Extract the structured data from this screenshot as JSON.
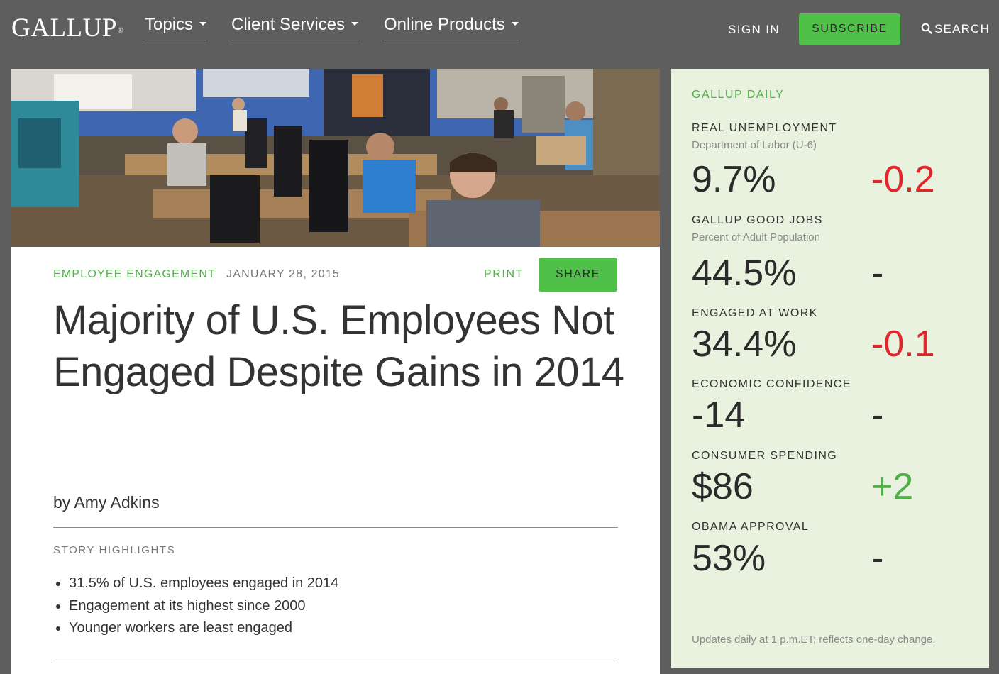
{
  "nav": {
    "logo": "GALLUP",
    "logo_mark": "®",
    "menu": [
      {
        "label": "Topics"
      },
      {
        "label": "Client Services"
      },
      {
        "label": "Online Products"
      }
    ],
    "sign_in": "SIGN IN",
    "subscribe": "SUBSCRIBE",
    "search": "SEARCH"
  },
  "article": {
    "topic": "EMPLOYEE ENGAGEMENT",
    "date": "JANUARY 28, 2015",
    "print": "PRINT",
    "share": "SHARE",
    "headline": "Majority of U.S. Employees Not Engaged Despite Gains in 2014",
    "byline": "by Amy Adkins",
    "highlights_title": "STORY HIGHLIGHTS",
    "highlights": [
      "31.5% of U.S. employees engaged in 2014",
      "Engagement at its highest since 2000",
      "Younger workers are least engaged"
    ]
  },
  "sidebar": {
    "title": "GALLUP DAILY",
    "stats": [
      {
        "label": "REAL UNEMPLOYMENT",
        "sub": "Department of Labor (U-6)",
        "value": "9.7%",
        "change": "-0.2",
        "trend": "negative"
      },
      {
        "label": "GALLUP GOOD JOBS",
        "sub": "Percent of Adult Population",
        "value": "44.5%",
        "change": "-",
        "trend": "neutral"
      },
      {
        "label": "ENGAGED AT WORK",
        "sub": "",
        "value": "34.4%",
        "change": "-0.1",
        "trend": "negative"
      },
      {
        "label": "ECONOMIC CONFIDENCE",
        "sub": "",
        "value": "-14",
        "change": "-",
        "trend": "neutral"
      },
      {
        "label": "CONSUMER SPENDING",
        "sub": "",
        "value": "$86",
        "change": "+2",
        "trend": "positive"
      },
      {
        "label": "OBAMA APPROVAL",
        "sub": "",
        "value": "53%",
        "change": "-",
        "trend": "neutral"
      }
    ],
    "footer": "Updates daily at 1 p.m.ET; reflects one-day change."
  },
  "colors": {
    "nav_bg": "#5e5e5e",
    "accent_green": "#4fc148",
    "negative_red": "#e0252b",
    "sidebar_bg": "#e9f2df"
  }
}
